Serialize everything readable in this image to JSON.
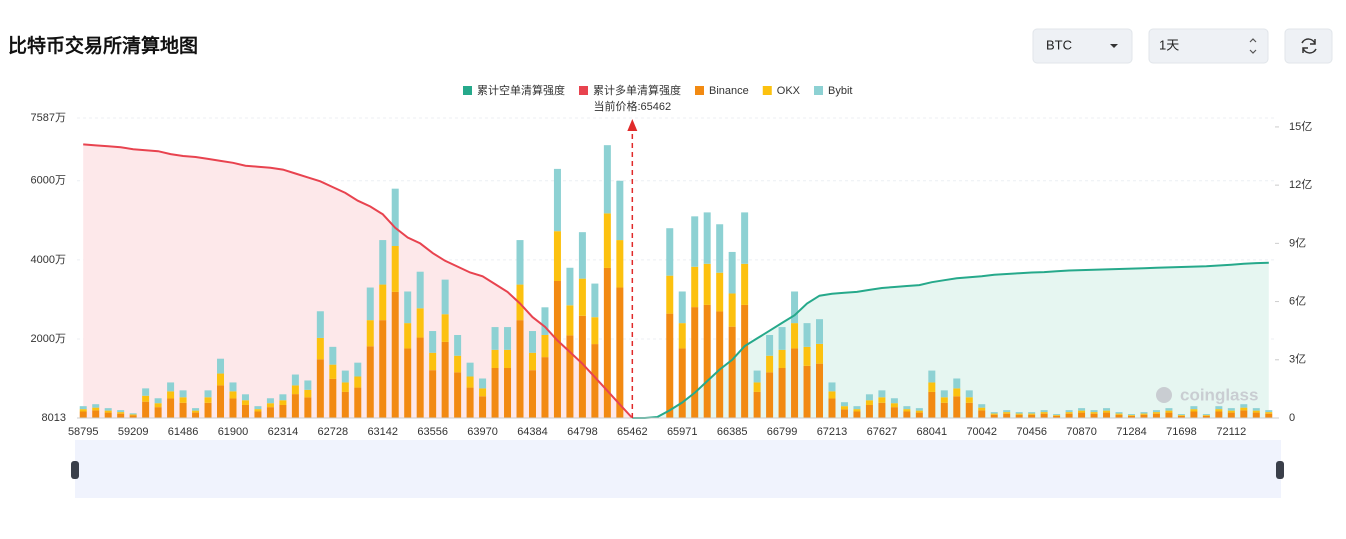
{
  "title": "比特币交易所清算地图",
  "controls": {
    "coin": "BTC",
    "period": "1天"
  },
  "chart_data": {
    "type": "bar",
    "annotation": "当前价格:65462",
    "watermark": "coinglass",
    "current_index": 44,
    "grid": true,
    "categories": [
      "58795",
      null,
      null,
      null,
      "59209",
      null,
      null,
      null,
      "61486",
      null,
      null,
      null,
      "61900",
      null,
      null,
      null,
      "62314",
      null,
      null,
      null,
      "62728",
      null,
      null,
      null,
      "63142",
      null,
      null,
      null,
      "63556",
      null,
      null,
      null,
      "63970",
      null,
      null,
      null,
      "64384",
      null,
      null,
      null,
      "64798",
      null,
      null,
      null,
      "65462",
      null,
      null,
      null,
      "65971",
      null,
      null,
      null,
      "66385",
      null,
      null,
      null,
      "66799",
      null,
      null,
      null,
      "67213",
      null,
      null,
      null,
      "67627",
      null,
      null,
      null,
      "68041",
      null,
      null,
      null,
      "70042",
      null,
      null,
      null,
      "70456",
      null,
      null,
      null,
      "70870",
      null,
      null,
      null,
      "71284",
      null,
      null,
      null,
      "71698",
      null,
      null,
      null,
      "72112",
      null,
      null,
      null
    ],
    "ylim": [
      0.8013,
      7587
    ],
    "yticks": [
      {
        "value": 0.8013,
        "label": "8013"
      },
      {
        "value": 2000,
        "label": "2000万"
      },
      {
        "value": 4000,
        "label": "4000万"
      },
      {
        "value": 6000,
        "label": "6000万"
      },
      {
        "value": 7587,
        "label": "7587万"
      }
    ],
    "y2lim": [
      0,
      15.46
    ],
    "y2ticks": [
      0,
      {
        "value": 3,
        "label": "3亿"
      },
      {
        "value": 6,
        "label": "6亿"
      },
      {
        "value": 9,
        "label": "9亿"
      },
      {
        "value": 12,
        "label": "12亿"
      },
      {
        "value": 15,
        "label": "15亿"
      }
    ],
    "series": [
      {
        "name": "累计空单清算强度",
        "type": "line",
        "axis": "y2",
        "color": "#26a98b",
        "fill": "#e6f6f1",
        "values": [
          null,
          null,
          null,
          null,
          null,
          null,
          null,
          null,
          null,
          null,
          null,
          null,
          null,
          null,
          null,
          null,
          null,
          null,
          null,
          null,
          null,
          null,
          null,
          null,
          null,
          null,
          null,
          null,
          null,
          null,
          null,
          null,
          null,
          null,
          null,
          null,
          null,
          null,
          null,
          null,
          null,
          null,
          null,
          null,
          0,
          0,
          0.05,
          0.4,
          0.8,
          1.3,
          1.9,
          2.5,
          3.0,
          3.7,
          4.1,
          4.5,
          4.9,
          5.3,
          5.9,
          6.3,
          6.4,
          6.45,
          6.5,
          6.6,
          6.7,
          6.75,
          6.8,
          6.85,
          7.0,
          7.1,
          7.2,
          7.25,
          7.3,
          7.38,
          7.42,
          7.46,
          7.5,
          7.52,
          7.56,
          7.6,
          7.62,
          7.64,
          7.66,
          7.68,
          7.7,
          7.72,
          7.74,
          7.76,
          7.78,
          7.8,
          7.82,
          7.86,
          7.9,
          7.95,
          7.98,
          8.0
        ]
      },
      {
        "name": "累计多单清算强度",
        "type": "line",
        "axis": "y2",
        "color": "#e8434f",
        "fill": "#fde8ea",
        "values": [
          14.1,
          14.05,
          14.0,
          13.95,
          13.85,
          13.8,
          13.75,
          13.6,
          13.5,
          13.45,
          13.35,
          13.25,
          13.15,
          13.0,
          12.95,
          12.9,
          12.8,
          12.6,
          12.4,
          12.2,
          11.9,
          11.6,
          11.2,
          10.9,
          10.5,
          9.8,
          9.3,
          9.0,
          8.5,
          8.1,
          7.8,
          7.5,
          7.3,
          6.9,
          6.5,
          5.9,
          5.2,
          4.7,
          4.0,
          3.4,
          2.8,
          2.1,
          1.4,
          0.7,
          0,
          null,
          null,
          null,
          null,
          null,
          null,
          null,
          null,
          null,
          null,
          null,
          null,
          null,
          null,
          null,
          null,
          null,
          null,
          null,
          null,
          null,
          null,
          null,
          null,
          null,
          null,
          null,
          null,
          null,
          null,
          null,
          null,
          null,
          null,
          null,
          null,
          null,
          null,
          null,
          null,
          null,
          null,
          null,
          null,
          null,
          null,
          null,
          null,
          null,
          null,
          null
        ]
      },
      {
        "name": "Binance",
        "color": "#f28a12",
        "values": [
          165,
          193,
          138,
          110,
          66,
          413,
          275,
          495,
          385,
          138,
          385,
          825,
          495,
          330,
          165,
          275,
          330,
          605,
          523,
          1485,
          990,
          660,
          770,
          1815,
          2475,
          3190,
          1760,
          2035,
          1210,
          1925,
          1155,
          770,
          550,
          1265,
          1265,
          2475,
          1210,
          1540,
          3465,
          2090,
          2585,
          1870,
          3795,
          3300,
          0,
          0,
          0,
          2640,
          1760,
          2805,
          2860,
          2695,
          2310,
          2860,
          660,
          1155,
          1265,
          1760,
          1320,
          1375,
          495,
          220,
          165,
          330,
          385,
          275,
          165,
          138,
          660,
          385,
          550,
          385,
          193,
          83,
          110,
          83,
          83,
          110,
          55,
          110,
          138,
          110,
          138,
          83,
          55,
          83,
          110,
          138,
          55,
          165,
          55,
          165,
          138,
          193,
          138,
          110
        ]
      },
      {
        "name": "OKX",
        "color": "#fcc10f",
        "values": [
          60,
          70,
          50,
          40,
          24,
          150,
          100,
          180,
          140,
          50,
          140,
          300,
          180,
          120,
          60,
          100,
          120,
          220,
          190,
          540,
          360,
          240,
          280,
          660,
          900,
          1160,
          640,
          740,
          440,
          700,
          420,
          280,
          200,
          460,
          460,
          900,
          440,
          560,
          1260,
          760,
          940,
          680,
          1380,
          1200,
          0,
          0,
          0,
          960,
          640,
          1020,
          1040,
          980,
          840,
          1040,
          240,
          420,
          460,
          640,
          480,
          500,
          180,
          80,
          60,
          120,
          140,
          100,
          60,
          50,
          240,
          140,
          200,
          140,
          70,
          30,
          40,
          30,
          30,
          40,
          20,
          40,
          50,
          40,
          50,
          30,
          20,
          30,
          40,
          50,
          20,
          60,
          20,
          60,
          50,
          70,
          50,
          40
        ]
      },
      {
        "name": "Bybit",
        "color": "#8dd1d3",
        "values": [
          75,
          87,
          62,
          50,
          30,
          187,
          125,
          225,
          175,
          62,
          175,
          375,
          225,
          150,
          75,
          125,
          150,
          275,
          237,
          675,
          450,
          300,
          350,
          825,
          1125,
          1450,
          800,
          925,
          550,
          875,
          525,
          350,
          250,
          575,
          575,
          1125,
          550,
          700,
          1575,
          950,
          1175,
          850,
          1725,
          1500,
          0,
          0,
          0,
          1200,
          800,
          1275,
          1300,
          1225,
          1050,
          1300,
          300,
          525,
          575,
          800,
          600,
          625,
          225,
          100,
          75,
          150,
          175,
          125,
          75,
          62,
          300,
          175,
          250,
          175,
          87,
          37,
          50,
          37,
          37,
          50,
          25,
          50,
          62,
          50,
          62,
          37,
          25,
          37,
          50,
          62,
          25,
          75,
          25,
          75,
          62,
          87,
          62,
          50
        ]
      }
    ]
  }
}
